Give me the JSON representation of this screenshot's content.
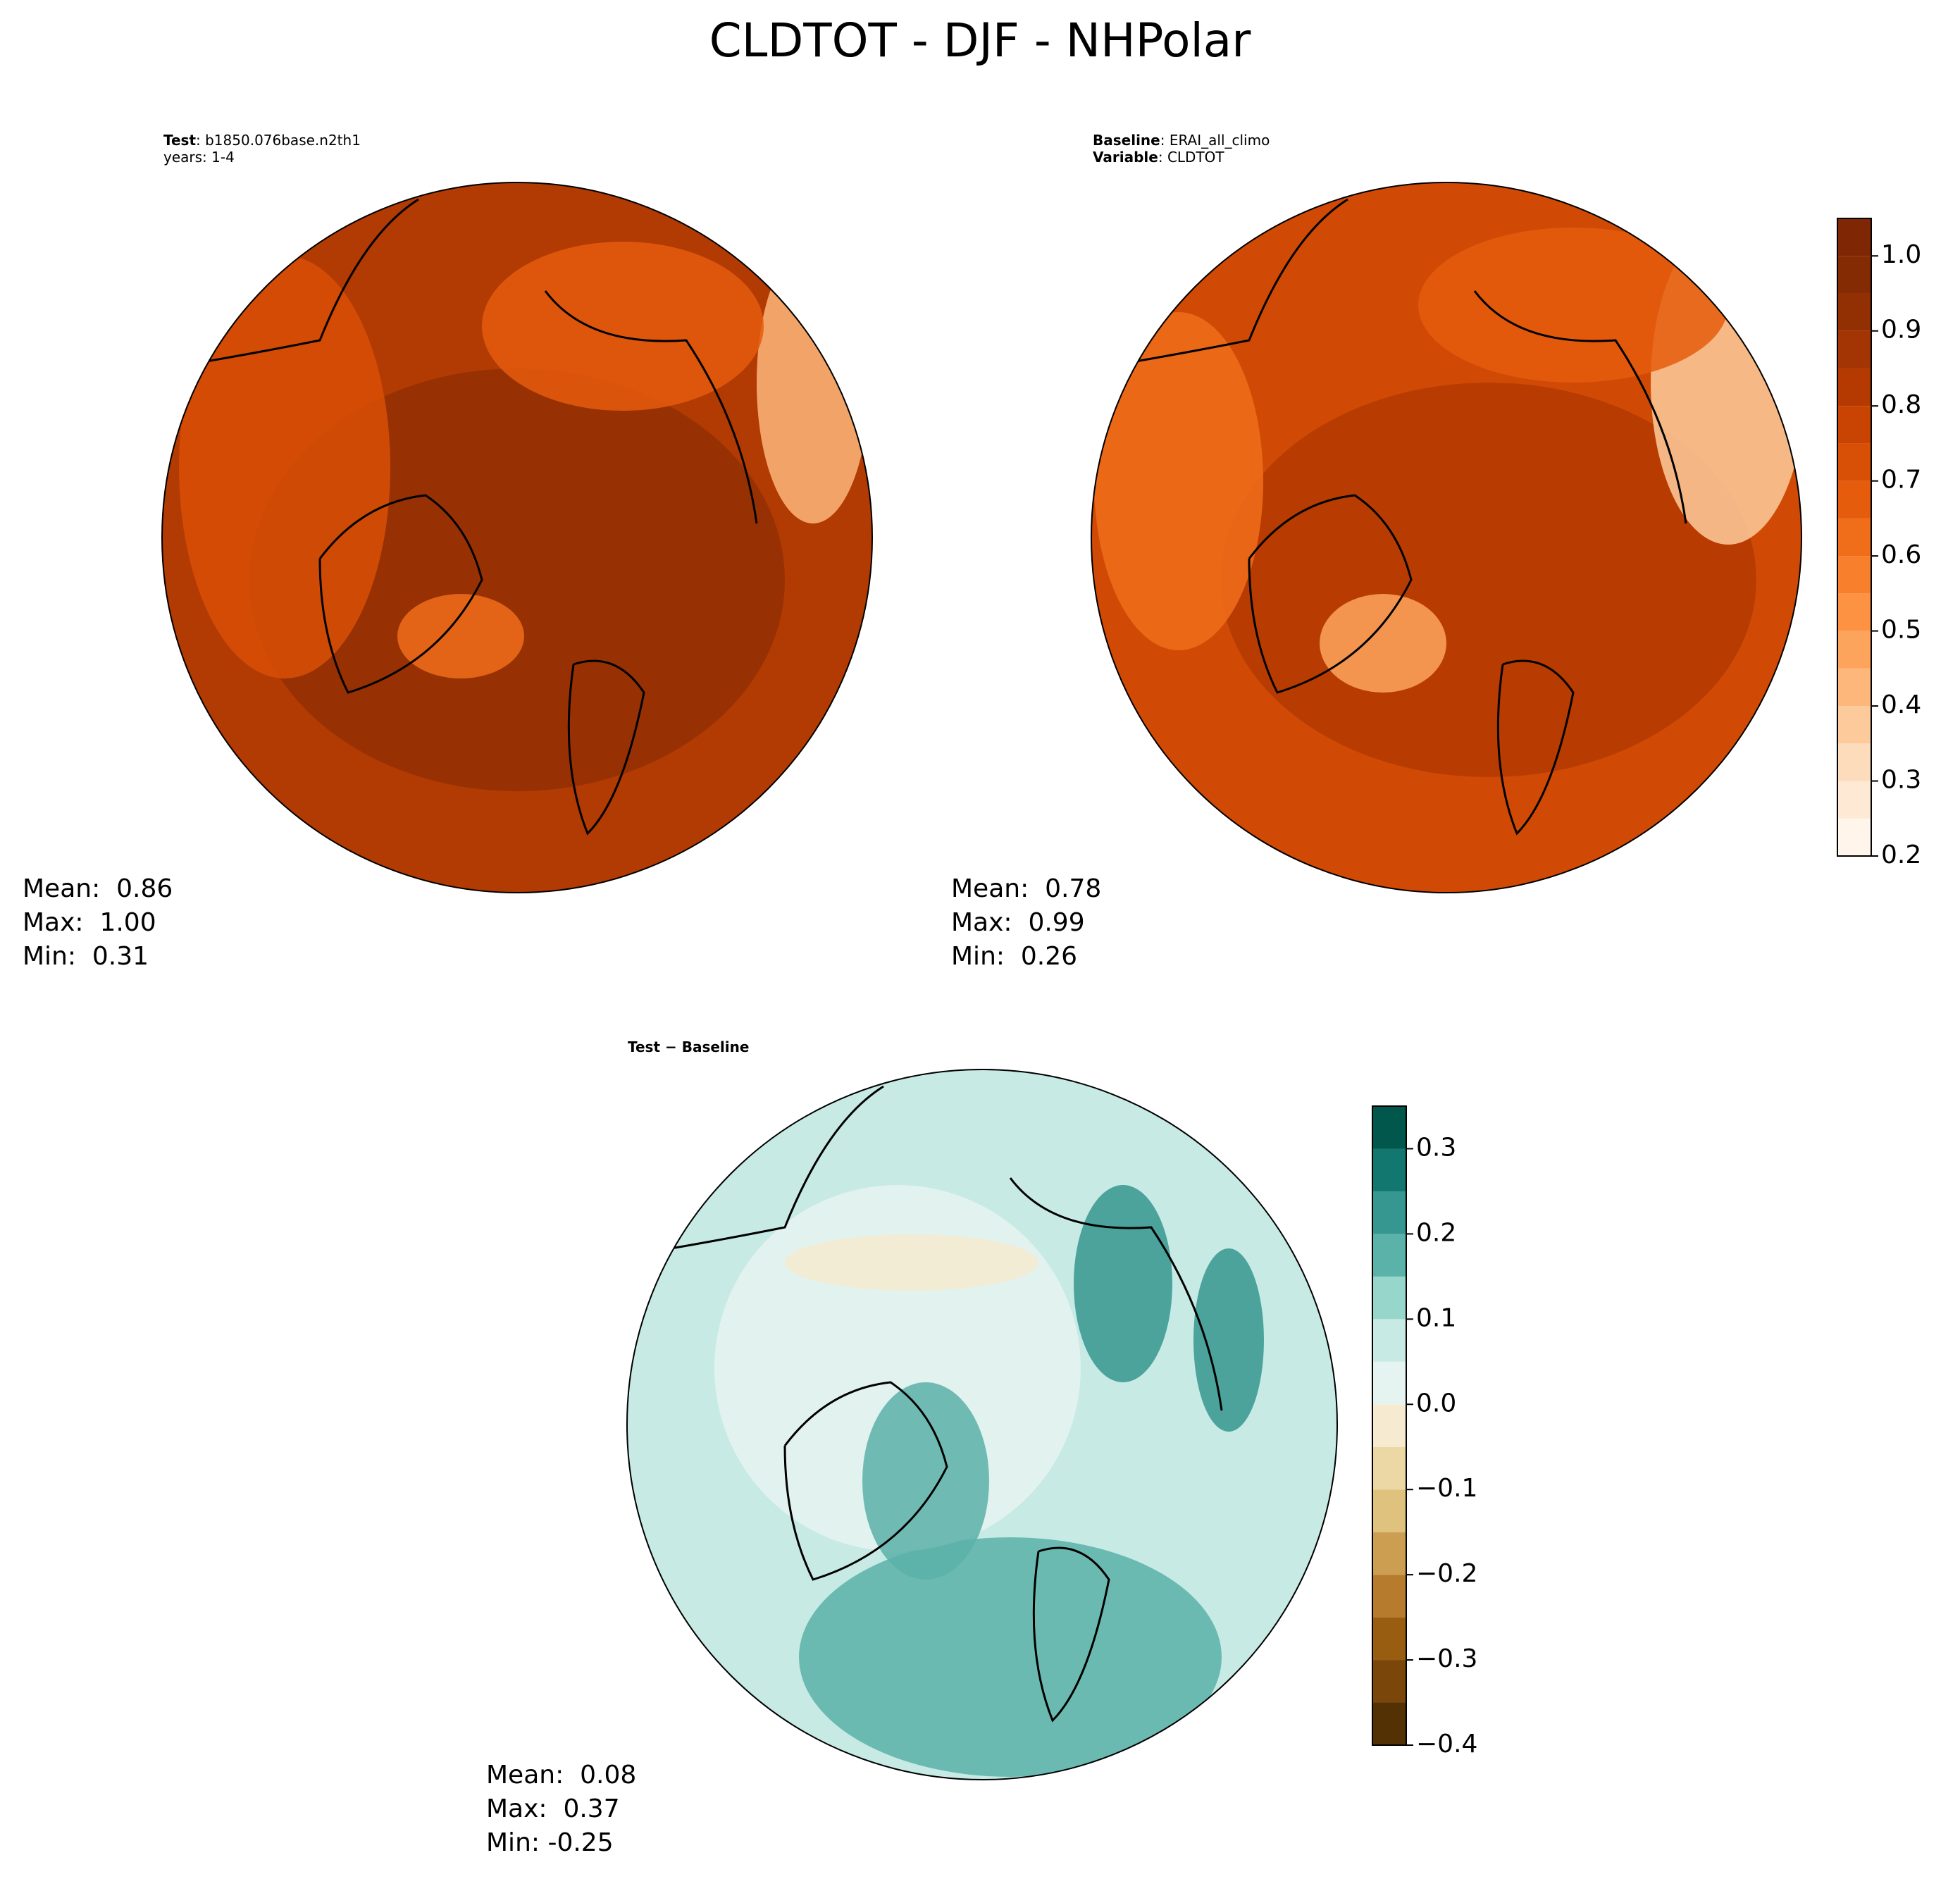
{
  "figure_title": "CLDTOT - DJF - NHPolar",
  "chart_data": [
    {
      "type": "map",
      "header": [
        {
          "key": "Test",
          "text": ": b1850.076base.n2th1"
        },
        {
          "text": "years: 1-4"
        }
      ],
      "stats": [
        "Mean:  0.86",
        "Max:  1.00",
        "Min:  0.31"
      ]
    },
    {
      "type": "map",
      "header": [
        {
          "key": "Baseline",
          "text": ": ERAI_all_climo"
        },
        {
          "key": "Variable",
          "text": ": CLDTOT"
        }
      ],
      "stats": [
        "Mean:  0.78",
        "Max:  0.99",
        "Min:  0.26"
      ],
      "colorbar": {
        "levels": [
          0.2,
          0.25,
          0.3,
          0.35,
          0.4,
          0.45,
          0.5,
          0.55,
          0.6,
          0.65,
          0.7,
          0.75,
          0.8,
          0.85,
          0.9,
          0.95,
          1.0,
          1.05
        ],
        "colors": [
          "#fff5eb",
          "#fee9d4",
          "#fddcbb",
          "#fdcb9b",
          "#fdb77a",
          "#fda45c",
          "#fd9243",
          "#f8802d",
          "#f06d1a",
          "#e55c0d",
          "#d84f06",
          "#c94402",
          "#b43a02",
          "#a33403",
          "#923003",
          "#852b03",
          "#7f2704"
        ],
        "ylim": [
          0.2,
          1.05
        ],
        "yticks": [
          0.2,
          0.3,
          0.4,
          0.5,
          0.6,
          0.7,
          0.8,
          0.9,
          {
            "value": 1.0,
            "label": "1.0"
          }
        ]
      }
    },
    {
      "type": "map",
      "header": [
        {
          "key": "Test − Baseline"
        }
      ],
      "stats": [
        "Mean:  0.08",
        "Max:  0.37",
        "Min: -0.25"
      ],
      "colorbar": {
        "levels": [
          -0.4,
          -0.35,
          -0.3,
          -0.25,
          -0.2,
          -0.15,
          -0.1,
          -0.05,
          0.0,
          0.05,
          0.1,
          0.15,
          0.2,
          0.25,
          0.3,
          0.35
        ],
        "colors": [
          "#543005",
          "#7a4609",
          "#995d12",
          "#b67b2d",
          "#cc9e52",
          "#dfc27d",
          "#ecd8a4",
          "#f6ebd0",
          "#e5f3f1",
          "#c7eae5",
          "#97d6cb",
          "#5ab2a8",
          "#35978f",
          "#11776f",
          "#01574b"
        ],
        "ylim": [
          -0.4,
          0.35
        ],
        "yticks": [
          {
            "value": -0.4,
            "label": "−0.4"
          },
          {
            "value": -0.3,
            "label": "−0.3"
          },
          {
            "value": -0.2,
            "label": "−0.2"
          },
          {
            "value": -0.1,
            "label": "−0.1"
          },
          {
            "value": 0.0,
            "label": "0.0"
          },
          0.1,
          0.2,
          0.3
        ]
      }
    }
  ]
}
